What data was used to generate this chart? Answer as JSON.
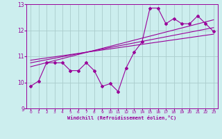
{
  "title": "",
  "xlabel": "Windchill (Refroidissement éolien,°C)",
  "ylabel": "",
  "xlim": [
    -0.5,
    23.5
  ],
  "ylim": [
    9,
    13
  ],
  "yticks": [
    9,
    10,
    11,
    12,
    13
  ],
  "xticks": [
    0,
    1,
    2,
    3,
    4,
    5,
    6,
    7,
    8,
    9,
    10,
    11,
    12,
    13,
    14,
    15,
    16,
    17,
    18,
    19,
    20,
    21,
    22,
    23
  ],
  "xtick_labels": [
    "0",
    "1",
    "2",
    "3",
    "4",
    "5",
    "6",
    "7",
    "8",
    "9",
    "10",
    "11",
    "12",
    "13",
    "14",
    "15",
    "16",
    "17",
    "18",
    "19",
    "20",
    "21",
    "22",
    "23"
  ],
  "bg_color": "#cceeee",
  "grid_color": "#aacccc",
  "line_color": "#990099",
  "line1_x": [
    0,
    1,
    2,
    3,
    4,
    5,
    6,
    7,
    8,
    9,
    10,
    11,
    12,
    13,
    14,
    15,
    16,
    17,
    18,
    19,
    20,
    21,
    22,
    23
  ],
  "line1_y": [
    9.85,
    10.05,
    10.75,
    10.75,
    10.75,
    10.45,
    10.45,
    10.75,
    10.45,
    9.85,
    9.95,
    9.65,
    10.55,
    11.15,
    11.55,
    12.85,
    12.85,
    12.25,
    12.45,
    12.25,
    12.25,
    12.55,
    12.25,
    11.95
  ],
  "line2_x": [
    0,
    23
  ],
  "line2_y": [
    10.6,
    12.4
  ],
  "line3_x": [
    0,
    23
  ],
  "line3_y": [
    10.75,
    12.1
  ],
  "line4_x": [
    0,
    23
  ],
  "line4_y": [
    10.85,
    11.85
  ]
}
